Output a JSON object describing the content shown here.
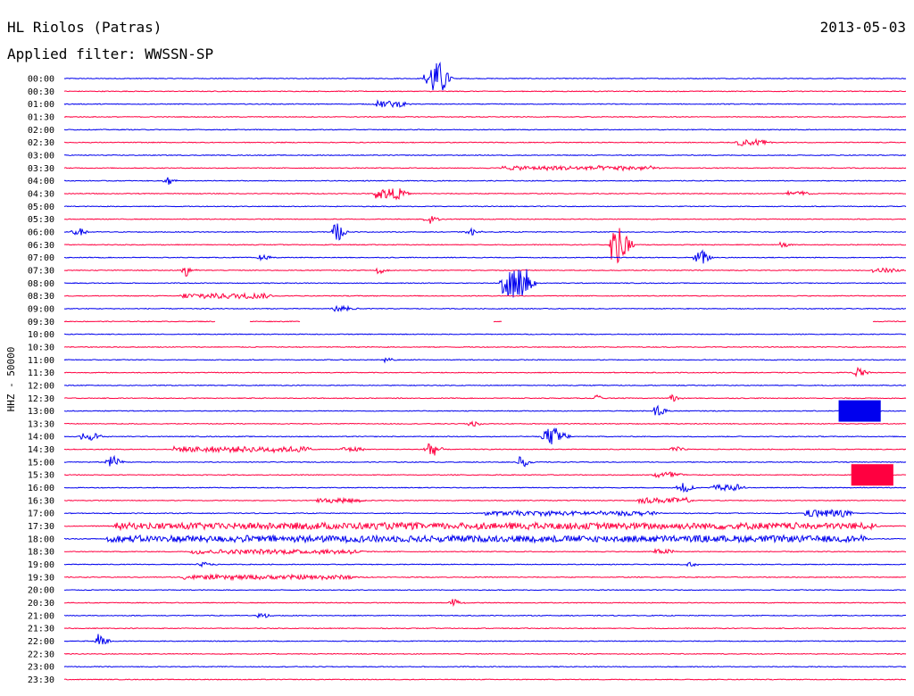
{
  "header": {
    "station": "HL Riolos (Patras)",
    "date": "2013-05-03",
    "filter": "Applied filter: WWSSN-SP"
  },
  "chart_data": {
    "type": "line",
    "title": "HL Riolos (Patras)",
    "subtitle": "Applied filter: WWSSN-SP",
    "ylabel": "HHZ - 50000",
    "xlabel": "",
    "colors": {
      "even": "#0000ee",
      "odd": "#ff0040",
      "background": "#ffffff"
    },
    "grid": false,
    "traces": [
      {
        "label": "00:00",
        "events": [
          [
            0.43,
            3.0,
            0.02
          ]
        ]
      },
      {
        "label": "00:30",
        "events": []
      },
      {
        "label": "01:00",
        "events": [
          [
            0.37,
            0.6,
            0.03
          ]
        ]
      },
      {
        "label": "01:30",
        "events": []
      },
      {
        "label": "02:00",
        "events": []
      },
      {
        "label": "02:30",
        "events": [
          [
            0.8,
            0.6,
            0.03
          ]
        ]
      },
      {
        "label": "03:00",
        "events": []
      },
      {
        "label": "03:30",
        "events": [
          [
            0.52,
            0.4,
            0.18
          ]
        ]
      },
      {
        "label": "04:00",
        "events": [
          [
            0.12,
            0.8,
            0.005
          ]
        ]
      },
      {
        "label": "04:30",
        "events": [
          [
            0.37,
            1.0,
            0.03
          ],
          [
            0.86,
            0.5,
            0.02
          ]
        ]
      },
      {
        "label": "05:00",
        "events": []
      },
      {
        "label": "05:30",
        "events": [
          [
            0.43,
            0.8,
            0.006
          ]
        ]
      },
      {
        "label": "06:00",
        "events": [
          [
            0.32,
            1.8,
            0.006
          ],
          [
            0.01,
            0.7,
            0.01
          ],
          [
            0.48,
            0.6,
            0.005
          ]
        ]
      },
      {
        "label": "06:30",
        "events": [
          [
            0.65,
            3.5,
            0.015
          ],
          [
            0.85,
            0.6,
            0.005
          ]
        ]
      },
      {
        "label": "07:00",
        "events": [
          [
            0.75,
            1.4,
            0.01
          ],
          [
            0.23,
            0.5,
            0.01
          ]
        ]
      },
      {
        "label": "07:30",
        "events": [
          [
            0.14,
            1.5,
            0.005
          ],
          [
            0.37,
            0.7,
            0.005
          ],
          [
            0.96,
            0.4,
            0.03
          ]
        ]
      },
      {
        "label": "08:00",
        "events": [
          [
            0.52,
            2.8,
            0.03
          ]
        ]
      },
      {
        "label": "08:30",
        "events": [
          [
            0.14,
            0.5,
            0.1
          ]
        ]
      },
      {
        "label": "09:00",
        "events": [
          [
            0.32,
            0.5,
            0.02
          ]
        ]
      },
      {
        "label": "09:30",
        "events": []
      },
      {
        "label": "10:00",
        "events": []
      },
      {
        "label": "10:30",
        "events": []
      },
      {
        "label": "11:00",
        "events": [
          [
            0.38,
            0.4,
            0.005
          ]
        ]
      },
      {
        "label": "11:30",
        "events": [
          [
            0.94,
            1.0,
            0.006
          ]
        ]
      },
      {
        "label": "12:00",
        "events": []
      },
      {
        "label": "12:30",
        "events": [
          [
            0.72,
            0.7,
            0.005
          ],
          [
            0.63,
            0.5,
            0.004
          ]
        ]
      },
      {
        "label": "13:00",
        "events": [
          [
            0.7,
            1.2,
            0.008
          ]
        ]
      },
      {
        "label": "13:30",
        "events": [
          [
            0.48,
            0.5,
            0.01
          ]
        ]
      },
      {
        "label": "14:00",
        "events": [
          [
            0.57,
            1.6,
            0.02
          ],
          [
            0.02,
            0.6,
            0.02
          ]
        ]
      },
      {
        "label": "14:30",
        "events": [
          [
            0.43,
            1.6,
            0.008
          ],
          [
            0.13,
            0.5,
            0.16
          ],
          [
            0.33,
            0.5,
            0.02
          ],
          [
            0.72,
            0.5,
            0.01
          ]
        ]
      },
      {
        "label": "15:00",
        "events": [
          [
            0.05,
            1.2,
            0.01
          ],
          [
            0.54,
            1.0,
            0.006
          ]
        ]
      },
      {
        "label": "15:30",
        "events": [
          [
            0.7,
            0.6,
            0.03
          ]
        ]
      },
      {
        "label": "16:00",
        "events": [
          [
            0.73,
            1.3,
            0.008
          ],
          [
            0.77,
            0.6,
            0.03
          ]
        ]
      },
      {
        "label": "16:30",
        "events": [
          [
            0.68,
            0.5,
            0.06
          ],
          [
            0.3,
            0.4,
            0.05
          ]
        ]
      },
      {
        "label": "17:00",
        "events": [
          [
            0.88,
            0.7,
            0.05
          ],
          [
            0.5,
            0.4,
            0.2
          ]
        ]
      },
      {
        "label": "17:30",
        "events": [
          [
            0.06,
            0.6,
            0.9
          ]
        ]
      },
      {
        "label": "18:00",
        "events": [
          [
            0.05,
            0.6,
            0.9
          ]
        ]
      },
      {
        "label": "18:30",
        "events": [
          [
            0.15,
            0.4,
            0.2
          ],
          [
            0.7,
            0.4,
            0.02
          ]
        ]
      },
      {
        "label": "19:00",
        "events": [
          [
            0.16,
            0.4,
            0.01
          ],
          [
            0.74,
            0.5,
            0.005
          ]
        ]
      },
      {
        "label": "19:30",
        "events": [
          [
            0.14,
            0.4,
            0.2
          ]
        ]
      },
      {
        "label": "20:00",
        "events": []
      },
      {
        "label": "20:30",
        "events": [
          [
            0.46,
            0.8,
            0.005
          ]
        ]
      },
      {
        "label": "21:00",
        "events": [
          [
            0.23,
            0.4,
            0.01
          ]
        ]
      },
      {
        "label": "21:30",
        "events": []
      },
      {
        "label": "22:00",
        "events": [
          [
            0.04,
            1.6,
            0.004
          ]
        ]
      },
      {
        "label": "22:30",
        "events": []
      },
      {
        "label": "23:00",
        "events": []
      },
      {
        "label": "23:30",
        "events": []
      }
    ],
    "clipped_blocks": [
      {
        "label": "13:00",
        "x": [
          0.92,
          0.97
        ]
      },
      {
        "label": "15:30",
        "x": [
          0.935,
          0.985
        ]
      }
    ],
    "gaps": [
      {
        "label": "09:30",
        "x": [
          [
            0.18,
            0.22
          ],
          [
            0.28,
            0.51
          ],
          [
            0.52,
            0.96
          ]
        ]
      }
    ]
  }
}
